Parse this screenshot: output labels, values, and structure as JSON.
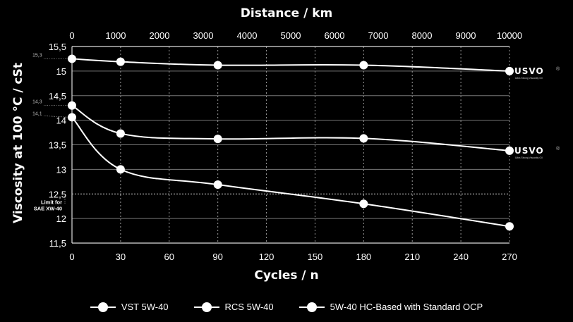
{
  "chart_data": {
    "type": "line",
    "xlabel": "Cycles / n",
    "x2label": "Distance / km",
    "ylabel": "Viscosity at 100 °C / cSt",
    "xlim": [
      0,
      270
    ],
    "x2lim": [
      0,
      10000
    ],
    "ylim": [
      11.5,
      15.5
    ],
    "x_ticks": [
      "0",
      "30",
      "60",
      "90",
      "120",
      "150",
      "180",
      "210",
      "240",
      "270"
    ],
    "x_tick_values": [
      0,
      30,
      60,
      90,
      120,
      150,
      180,
      210,
      240,
      270
    ],
    "x2_ticks": [
      "0",
      "1000",
      "2000",
      "3000",
      "4000",
      "5000",
      "6000",
      "7000",
      "8000",
      "9000",
      "10000"
    ],
    "x2_tick_values": [
      0,
      1000,
      2000,
      3000,
      4000,
      5000,
      6000,
      7000,
      8000,
      9000,
      10000
    ],
    "y_ticks": [
      "11,5",
      "12",
      "12,5",
      "13",
      "13,5",
      "14",
      "14,5",
      "15",
      "15,5"
    ],
    "y_tick_values": [
      11.5,
      12,
      12.5,
      13,
      13.5,
      14,
      14.5,
      15,
      15.5
    ],
    "grid": true,
    "legend_position": "bottom",
    "series": [
      {
        "name": "VST 5W-40",
        "x": [
          0,
          30,
          90,
          180,
          270
        ],
        "y": [
          15.25,
          15.19,
          15.12,
          15.12,
          15.0
        ]
      },
      {
        "name": "RCS 5W-40",
        "x": [
          0,
          30,
          90,
          180,
          270
        ],
        "y": [
          14.3,
          13.73,
          13.62,
          13.63,
          13.38
        ]
      },
      {
        "name": "5W-40 HC-Based with Standard OCP",
        "x": [
          0,
          30,
          90,
          180,
          270
        ],
        "y": [
          14.06,
          13.0,
          12.69,
          12.3,
          11.84
        ]
      }
    ],
    "annotations": {
      "start_labels": [
        {
          "text": "15,3",
          "value": 15.25
        },
        {
          "text": "14,3",
          "value": 14.3
        },
        {
          "text": "14,1",
          "value": 14.06
        }
      ],
      "limit_value": 12.5,
      "limit_label_line1": "Limit for",
      "limit_label_line2": "SAE XW-40",
      "logo_text": "USVO",
      "logo_mark": "®",
      "logo_subtext": "Ultra Strong Viscosity Oil"
    }
  }
}
